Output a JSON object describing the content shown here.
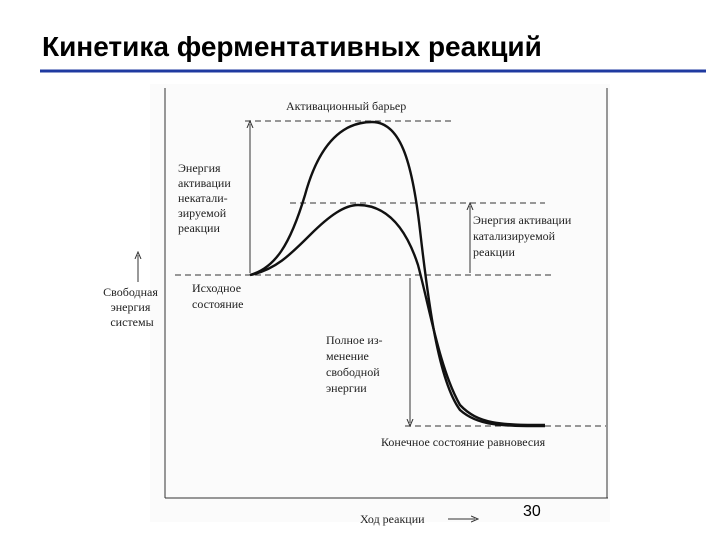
{
  "header": {
    "title": "Кинетика ферментативных реакций"
  },
  "diagram": {
    "barrier": "Активационный барьер",
    "uncatalyzed": [
      "Энергия",
      "активации",
      "некатали-",
      "зируемой",
      "реакции"
    ],
    "catalyzed": [
      "Энергия активации",
      "катализируемой",
      "реакции"
    ],
    "y_axis": [
      "Свободная",
      "энергия",
      "системы"
    ],
    "initial": [
      "Исходное",
      "состояние"
    ],
    "total_change": [
      "Полное из-",
      "менение",
      "свободной",
      "энергии"
    ],
    "final": "Конечное состояние равновесия",
    "x_axis": "Ход реакции"
  },
  "footer": {
    "page": "30"
  }
}
